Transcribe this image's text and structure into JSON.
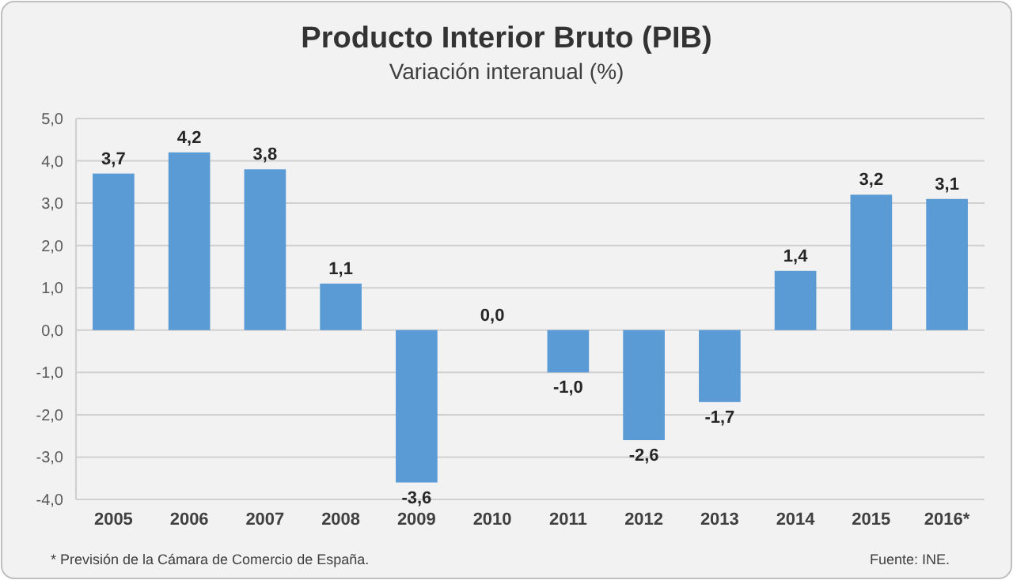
{
  "chart_data": {
    "type": "bar",
    "title": "Producto Interior Bruto (PIB)",
    "subtitle": "Variación interanual (%)",
    "categories": [
      "2005",
      "2006",
      "2007",
      "2008",
      "2009",
      "2010",
      "2011",
      "2012",
      "2013",
      "2014",
      "2015",
      "2016*"
    ],
    "values": [
      3.7,
      4.2,
      3.8,
      1.1,
      -3.6,
      0.0,
      -1.0,
      -2.6,
      -1.7,
      1.4,
      3.2,
      3.1
    ],
    "value_labels": [
      "3,7",
      "4,2",
      "3,8",
      "1,1",
      "-3,6",
      "0,0",
      "-1,0",
      "-2,6",
      "-1,7",
      "1,4",
      "3,2",
      "3,1"
    ],
    "color": "#5b9bd5",
    "ylim": [
      -4,
      5
    ],
    "yticks": [
      {
        "value": -4,
        "label": "-4,0"
      },
      {
        "value": -3,
        "label": "-3,0"
      },
      {
        "value": -2,
        "label": "-2,0"
      },
      {
        "value": -1,
        "label": "-1,0"
      },
      {
        "value": 0,
        "label": "0,0"
      },
      {
        "value": 1,
        "label": "1,0"
      },
      {
        "value": 2,
        "label": "2,0"
      },
      {
        "value": 3,
        "label": "3,0"
      },
      {
        "value": 4,
        "label": "4,0"
      },
      {
        "value": 5,
        "label": "5,0"
      }
    ],
    "grid": "y",
    "annotations": [
      "* Previsión de la Cámara de Comercio de España.",
      "Fuente: INE."
    ]
  }
}
